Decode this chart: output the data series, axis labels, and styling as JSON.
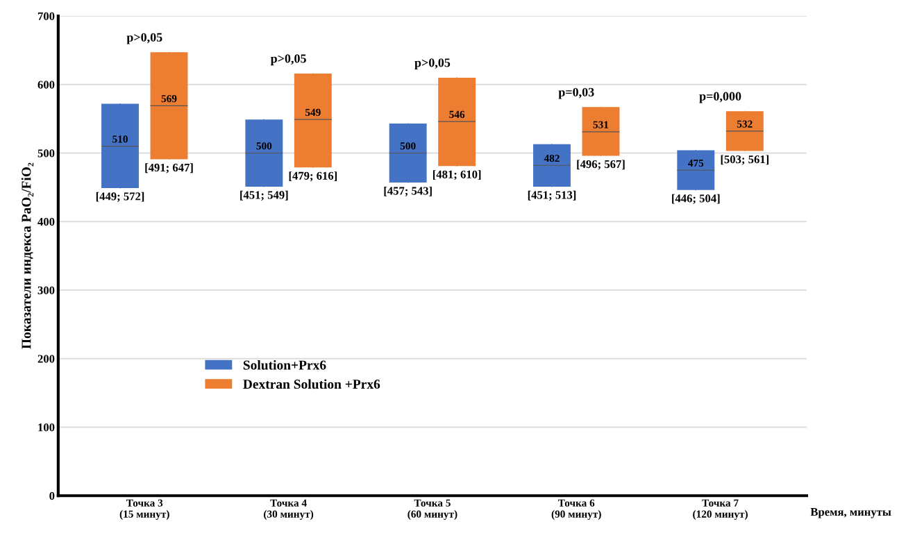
{
  "chart_data": {
    "type": "box",
    "ylabel": "Показатели индекса PaO₂/FiO₂",
    "xlabel": "Время, минуты",
    "categories": [
      "Точка 3\n(15 минут)",
      "Точка 4\n(30 минут)",
      "Точка 5\n(60 минут)",
      "Точка 6\n(90 минут)",
      "Точка 7\n(120 минут)"
    ],
    "series": [
      {
        "name": "Solution+Prx6",
        "color": "#4472c4",
        "boxes": [
          {
            "low": 449,
            "q1": 449,
            "median": 510,
            "q3": 572,
            "high": 572
          },
          {
            "low": 451,
            "q1": 451,
            "median": 500,
            "q3": 549,
            "high": 549
          },
          {
            "low": 457,
            "q1": 457,
            "median": 500,
            "q3": 543,
            "high": 543
          },
          {
            "low": 451,
            "q1": 451,
            "median": 482,
            "q3": 513,
            "high": 513
          },
          {
            "low": 446,
            "q1": 446,
            "median": 475,
            "q3": 504,
            "high": 504
          }
        ],
        "value_labels": [
          "[449; 572]",
          "[451; 549]",
          "[457; 543]",
          "[451; 513]",
          "[446; 504]"
        ]
      },
      {
        "name": "Dextran Solution +Prx6",
        "color": "#ed7d31",
        "boxes": [
          {
            "low": 491,
            "q1": 491,
            "median": 569,
            "q3": 647,
            "high": 647
          },
          {
            "low": 479,
            "q1": 479,
            "median": 549,
            "q3": 616,
            "high": 616
          },
          {
            "low": 481,
            "q1": 481,
            "median": 546,
            "q3": 610,
            "high": 610
          },
          {
            "low": 496,
            "q1": 496,
            "median": 531,
            "q3": 567,
            "high": 567
          },
          {
            "low": 503,
            "q1": 503,
            "median": 532,
            "q3": 561,
            "high": 561
          }
        ],
        "value_labels": [
          "[491; 647]",
          "[479; 616]",
          "[481; 610]",
          "[496; 567]",
          "[503; 561]"
        ]
      }
    ],
    "annotations": [
      "p>0,05",
      "p>0,05",
      "p>0,05",
      "p=0,03",
      "p=0,000",
      "510",
      "500",
      "500",
      "482",
      "475",
      "569",
      "549",
      "546",
      "531",
      "532"
    ],
    "ylim": [
      0,
      700
    ],
    "yticks": [
      0,
      100,
      200,
      300,
      400,
      500,
      600,
      700
    ],
    "grid": "y",
    "legend": "center left"
  }
}
